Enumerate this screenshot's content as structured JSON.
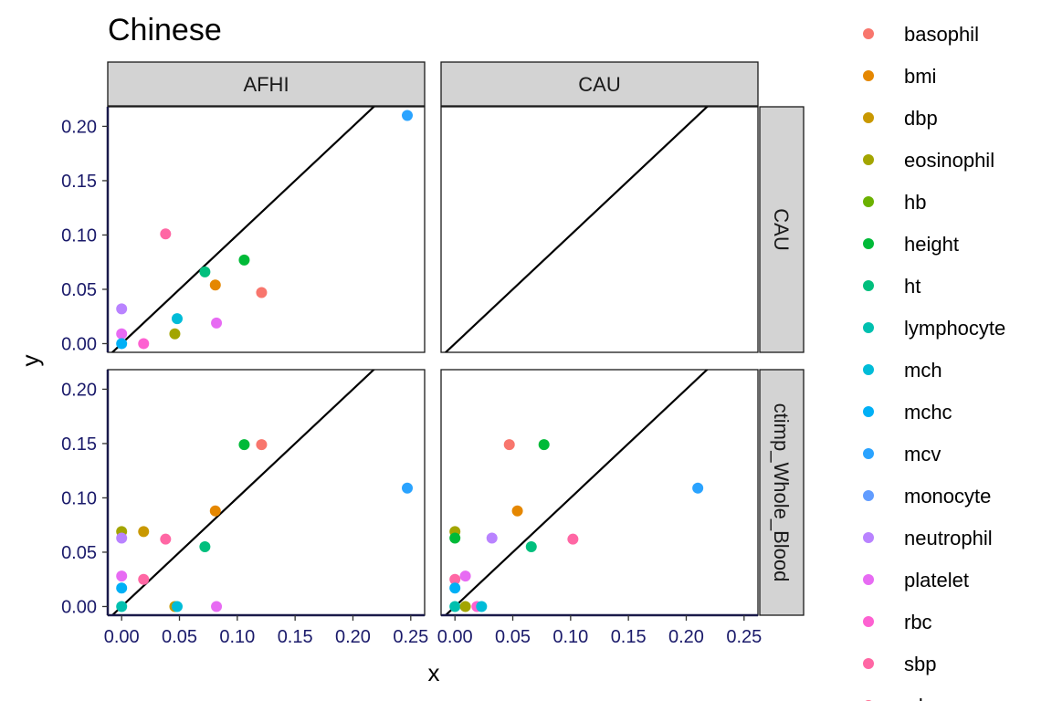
{
  "chart_data": {
    "type": "scatter",
    "title": "Chinese",
    "xlabel": "x",
    "ylabel": "y",
    "xlim": [
      -0.012,
      0.262
    ],
    "ylim": [
      -0.008,
      0.218
    ],
    "x_ticks": [
      "0.00",
      "0.05",
      "0.10",
      "0.15",
      "0.20",
      "0.25"
    ],
    "x_tick_values": [
      0,
      0.05,
      0.1,
      0.15,
      0.2,
      0.25
    ],
    "y_ticks": [
      "0.00",
      "0.05",
      "0.10",
      "0.15",
      "0.20"
    ],
    "y_tick_values": [
      0,
      0.05,
      0.1,
      0.15,
      0.2
    ],
    "reference_line": "y = x",
    "grid": false,
    "legend_position": "right",
    "facet_columns": [
      "AFHI",
      "CAU"
    ],
    "facet_rows": [
      "CAU",
      "ctimp_Whole_Blood"
    ],
    "legend": [
      {
        "name": "basophil",
        "color": "#F8766D"
      },
      {
        "name": "bmi",
        "color": "#E58700"
      },
      {
        "name": "dbp",
        "color": "#C99800"
      },
      {
        "name": "eosinophil",
        "color": "#A3A500"
      },
      {
        "name": "hb",
        "color": "#6BB100"
      },
      {
        "name": "height",
        "color": "#00BA38"
      },
      {
        "name": "ht",
        "color": "#00BF7D"
      },
      {
        "name": "lymphocyte",
        "color": "#00C0AF"
      },
      {
        "name": "mch",
        "color": "#00BCD8"
      },
      {
        "name": "mchc",
        "color": "#00B0F6"
      },
      {
        "name": "mcv",
        "color": "#2AA3FF"
      },
      {
        "name": "monocyte",
        "color": "#619CFF"
      },
      {
        "name": "neutrophil",
        "color": "#B983FF"
      },
      {
        "name": "platelet",
        "color": "#E76BF3"
      },
      {
        "name": "rbc",
        "color": "#FD61D1"
      },
      {
        "name": "sbp",
        "color": "#FF67A4"
      },
      {
        "name": "wbc",
        "color": "#FF6C90"
      }
    ],
    "panels": [
      {
        "col": "AFHI",
        "row": "CAU",
        "points": [
          {
            "x": 0.038,
            "y": 0.101,
            "color": "#FF67A4"
          },
          {
            "x": 0.247,
            "y": 0.21,
            "color": "#2AA3FF"
          },
          {
            "x": 0.072,
            "y": 0.066,
            "color": "#00BF7D"
          },
          {
            "x": 0.106,
            "y": 0.077,
            "color": "#00BA38"
          },
          {
            "x": 0.081,
            "y": 0.054,
            "color": "#E58700"
          },
          {
            "x": 0.121,
            "y": 0.047,
            "color": "#F8766D"
          },
          {
            "x": 0.0,
            "y": 0.032,
            "color": "#B983FF"
          },
          {
            "x": 0.048,
            "y": 0.023,
            "color": "#00BCD8"
          },
          {
            "x": 0.082,
            "y": 0.019,
            "color": "#E76BF3"
          },
          {
            "x": 0.0,
            "y": 0.009,
            "color": "#E76BF3"
          },
          {
            "x": 0.046,
            "y": 0.009,
            "color": "#A3A500"
          },
          {
            "x": 0.0,
            "y": 0.0,
            "color": "#00B0F6"
          },
          {
            "x": 0.019,
            "y": 0.0,
            "color": "#FD61D1"
          }
        ]
      },
      {
        "col": "CAU",
        "row": "CAU",
        "points": []
      },
      {
        "col": "AFHI",
        "row": "ctimp_Whole_Blood",
        "points": [
          {
            "x": 0.106,
            "y": 0.149,
            "color": "#00BA38"
          },
          {
            "x": 0.121,
            "y": 0.149,
            "color": "#F8766D"
          },
          {
            "x": 0.247,
            "y": 0.109,
            "color": "#2AA3FF"
          },
          {
            "x": 0.081,
            "y": 0.088,
            "color": "#E58700"
          },
          {
            "x": 0.0,
            "y": 0.069,
            "color": "#A3A500"
          },
          {
            "x": 0.019,
            "y": 0.069,
            "color": "#C99800"
          },
          {
            "x": 0.0,
            "y": 0.063,
            "color": "#B983FF"
          },
          {
            "x": 0.038,
            "y": 0.062,
            "color": "#FF67A4"
          },
          {
            "x": 0.072,
            "y": 0.055,
            "color": "#00BF7D"
          },
          {
            "x": 0.0,
            "y": 0.028,
            "color": "#E76BF3"
          },
          {
            "x": 0.019,
            "y": 0.025,
            "color": "#FF67A4"
          },
          {
            "x": 0.0,
            "y": 0.017,
            "color": "#00B0F6"
          },
          {
            "x": 0.0,
            "y": 0.0,
            "color": "#00C0AF"
          },
          {
            "x": 0.046,
            "y": 0.0,
            "color": "#C99800"
          },
          {
            "x": 0.048,
            "y": 0.0,
            "color": "#00BCD8"
          },
          {
            "x": 0.082,
            "y": 0.0,
            "color": "#E76BF3"
          }
        ]
      },
      {
        "col": "CAU",
        "row": "ctimp_Whole_Blood",
        "points": [
          {
            "x": 0.047,
            "y": 0.149,
            "color": "#F8766D"
          },
          {
            "x": 0.077,
            "y": 0.149,
            "color": "#00BA38"
          },
          {
            "x": 0.21,
            "y": 0.109,
            "color": "#2AA3FF"
          },
          {
            "x": 0.054,
            "y": 0.088,
            "color": "#E58700"
          },
          {
            "x": 0.0,
            "y": 0.069,
            "color": "#A3A500"
          },
          {
            "x": 0.0,
            "y": 0.063,
            "color": "#00BA38"
          },
          {
            "x": 0.032,
            "y": 0.063,
            "color": "#B983FF"
          },
          {
            "x": 0.102,
            "y": 0.062,
            "color": "#FF67A4"
          },
          {
            "x": 0.066,
            "y": 0.055,
            "color": "#00BF7D"
          },
          {
            "x": 0.009,
            "y": 0.028,
            "color": "#E76BF3"
          },
          {
            "x": 0.0,
            "y": 0.025,
            "color": "#FF67A4"
          },
          {
            "x": 0.0,
            "y": 0.017,
            "color": "#00B0F6"
          },
          {
            "x": 0.0,
            "y": 0.0,
            "color": "#00C0AF"
          },
          {
            "x": 0.009,
            "y": 0.0,
            "color": "#A3A500"
          },
          {
            "x": 0.019,
            "y": 0.0,
            "color": "#FD61D1"
          },
          {
            "x": 0.023,
            "y": 0.0,
            "color": "#00BCD8"
          }
        ]
      }
    ]
  }
}
